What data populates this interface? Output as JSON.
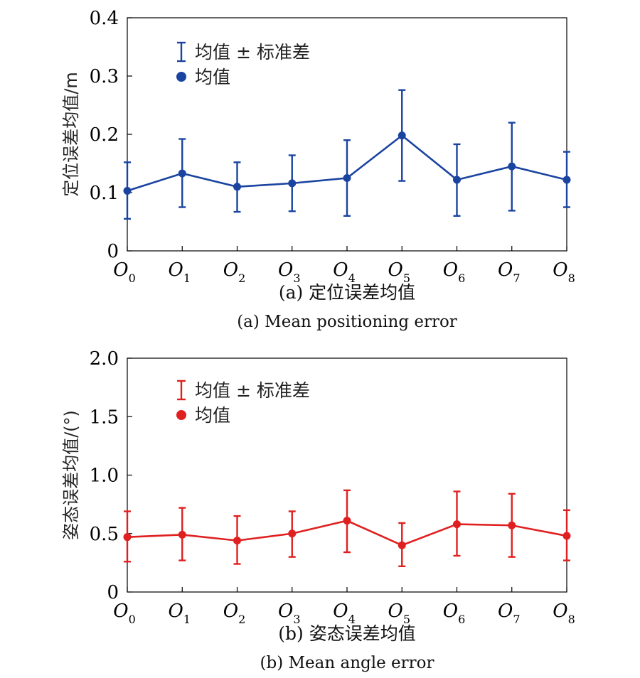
{
  "chart_data": [
    {
      "type": "line",
      "color": "#1a44a0",
      "ylabel": "定位误差均值/m",
      "ylim": [
        0,
        0.4
      ],
      "yticks": [
        "0",
        "0.1",
        "0.2",
        "0.3",
        "0.4"
      ],
      "ytick_values": [
        0,
        0.1,
        0.2,
        0.3,
        0.4
      ],
      "categories": [
        {
          "base": "O",
          "sub": "0"
        },
        {
          "base": "O",
          "sub": "1"
        },
        {
          "base": "O",
          "sub": "2"
        },
        {
          "base": "O",
          "sub": "3"
        },
        {
          "base": "O",
          "sub": "4"
        },
        {
          "base": "O",
          "sub": "5"
        },
        {
          "base": "O",
          "sub": "6"
        },
        {
          "base": "O",
          "sub": "7"
        },
        {
          "base": "O",
          "sub": "8"
        }
      ],
      "mean": [
        0.103,
        0.133,
        0.11,
        0.116,
        0.125,
        0.198,
        0.122,
        0.145,
        0.122
      ],
      "err_upper": [
        0.152,
        0.192,
        0.152,
        0.164,
        0.19,
        0.276,
        0.183,
        0.22,
        0.17
      ],
      "err_lower": [
        0.055,
        0.075,
        0.067,
        0.068,
        0.06,
        0.12,
        0.06,
        0.069,
        0.075
      ],
      "legend": [
        "均值 ± 标准差",
        "均值"
      ],
      "legend_position": "top-left",
      "caption_cn": "(a) 定位误差均值",
      "caption_en": "(a) Mean positioning error"
    },
    {
      "type": "line",
      "color": "#e02020",
      "ylabel": "姿态误差均值/(°)",
      "ylim": [
        0,
        2.0
      ],
      "yticks": [
        "0",
        "0.5",
        "1.0",
        "1.5",
        "2.0"
      ],
      "ytick_values": [
        0,
        0.5,
        1.0,
        1.5,
        2.0
      ],
      "categories": [
        {
          "base": "O",
          "sub": "0"
        },
        {
          "base": "O",
          "sub": "1"
        },
        {
          "base": "O",
          "sub": "2"
        },
        {
          "base": "O",
          "sub": "3"
        },
        {
          "base": "O",
          "sub": "4"
        },
        {
          "base": "O",
          "sub": "5"
        },
        {
          "base": "O",
          "sub": "6"
        },
        {
          "base": "O",
          "sub": "7"
        },
        {
          "base": "O",
          "sub": "8"
        }
      ],
      "mean": [
        0.47,
        0.49,
        0.44,
        0.5,
        0.61,
        0.4,
        0.58,
        0.57,
        0.48
      ],
      "err_upper": [
        0.69,
        0.72,
        0.65,
        0.69,
        0.87,
        0.59,
        0.86,
        0.84,
        0.7
      ],
      "err_lower": [
        0.26,
        0.27,
        0.24,
        0.3,
        0.34,
        0.22,
        0.31,
        0.3,
        0.27
      ],
      "legend": [
        "均值 ± 标准差",
        "均值"
      ],
      "legend_position": "top-left",
      "caption_cn": "(b) 姿态误差均值",
      "caption_en": "(b) Mean angle error"
    }
  ]
}
